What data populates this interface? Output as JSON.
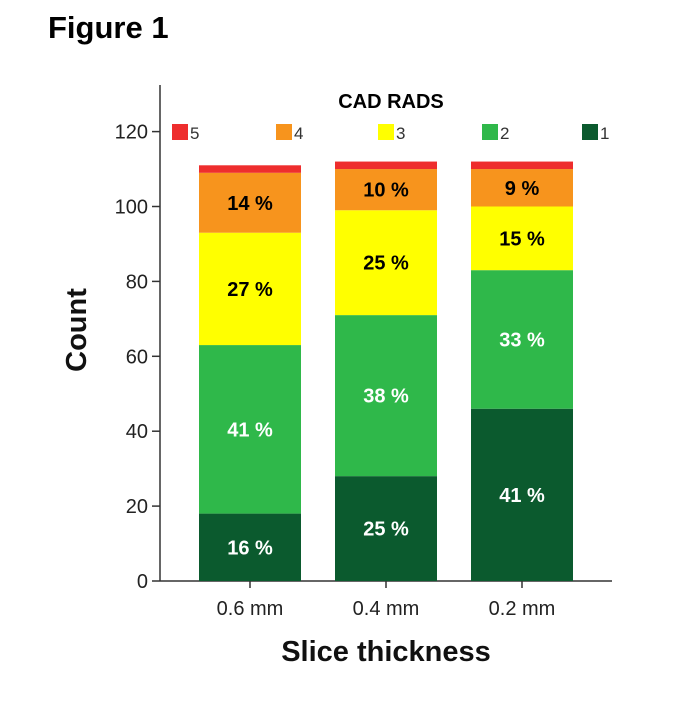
{
  "figure_title": "Figure 1",
  "chart_data": {
    "type": "bar",
    "stacked": true,
    "xlabel": "Slice thickness",
    "ylabel": "Count",
    "ylim": [
      0,
      130
    ],
    "yticks": [
      0,
      20,
      40,
      60,
      80,
      100,
      120
    ],
    "grid": false,
    "legend": {
      "title": "CAD RADS",
      "placement": "top"
    },
    "categories": [
      "0.6 mm",
      "0.4 mm",
      "0.2 mm"
    ],
    "series": [
      {
        "name": "1",
        "color": "#0b5a2e",
        "values": [
          18,
          28,
          46
        ],
        "labels": [
          "16 %",
          "25 %",
          "41 %"
        ],
        "label_color": "#ffffff"
      },
      {
        "name": "2",
        "color": "#2fb84a",
        "values": [
          45,
          43,
          37
        ],
        "labels": [
          "41 %",
          "38 %",
          "33 %"
        ],
        "label_color": "#ffffff"
      },
      {
        "name": "3",
        "color": "#ffff00",
        "values": [
          30,
          28,
          17
        ],
        "labels": [
          "27 %",
          "25 %",
          "15 %"
        ],
        "label_color": "#000000"
      },
      {
        "name": "4",
        "color": "#f7941d",
        "values": [
          16,
          11,
          10
        ],
        "labels": [
          "14 %",
          "10 %",
          "9 %"
        ],
        "label_color": "#000000"
      },
      {
        "name": "5",
        "color": "#ee2d2d",
        "values": [
          2,
          2,
          2
        ],
        "labels": [
          "",
          "",
          ""
        ],
        "label_color": "#000000"
      }
    ]
  }
}
